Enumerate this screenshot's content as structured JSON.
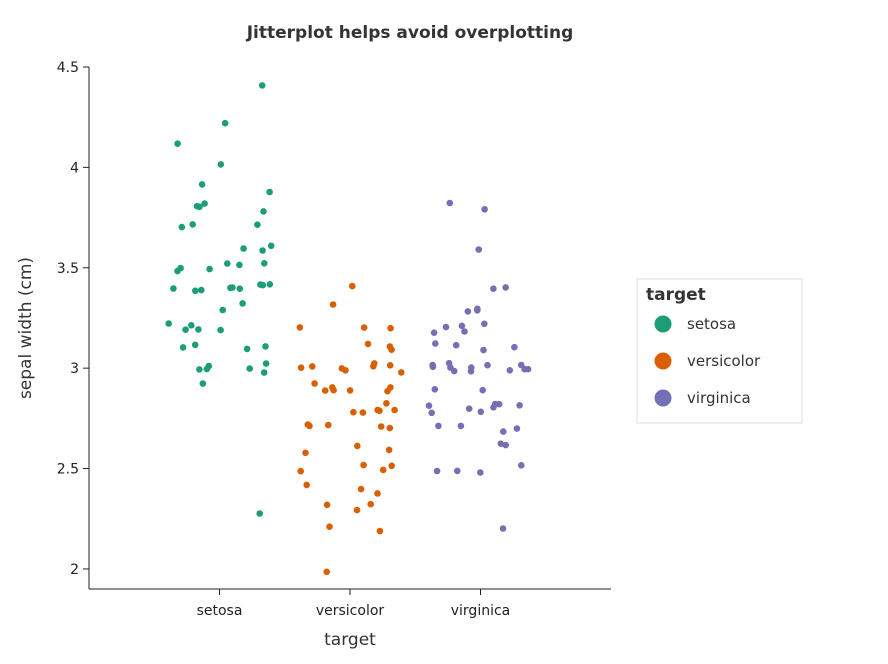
{
  "chart_data": {
    "type": "scatter",
    "title": "Jitterplot helps avoid overplotting",
    "xlabel": "target",
    "ylabel": "sepal width (cm)",
    "categories": [
      "setosa",
      "versicolor",
      "virginica"
    ],
    "yticks": [
      "2",
      "2.5",
      "3",
      "3.5",
      "4",
      "4.5"
    ],
    "ylim": [
      1.9,
      4.5
    ],
    "grid": false,
    "legend": {
      "title": "target",
      "placement": "right"
    },
    "colors": {
      "setosa": "#1b9e77",
      "versicolor": "#d95f02",
      "virginica": "#7570b3"
    },
    "series": [
      {
        "name": "setosa",
        "values": [
          3.5,
          3.0,
          3.2,
          3.1,
          3.6,
          3.9,
          3.4,
          3.4,
          2.9,
          3.1,
          3.7,
          3.4,
          3.0,
          3.0,
          4.0,
          4.4,
          3.9,
          3.5,
          3.8,
          3.8,
          3.4,
          3.7,
          3.6,
          3.3,
          3.4,
          3.0,
          3.4,
          3.5,
          3.4,
          3.2,
          3.1,
          3.4,
          4.1,
          4.2,
          3.1,
          3.2,
          3.5,
          3.6,
          3.0,
          3.4,
          3.5,
          2.3,
          3.2,
          3.5,
          3.8,
          3.0,
          3.8,
          3.2,
          3.7,
          3.3
        ]
      },
      {
        "name": "versicolor",
        "values": [
          3.2,
          3.2,
          3.1,
          2.3,
          2.8,
          2.8,
          3.3,
          2.4,
          2.9,
          2.7,
          2.0,
          3.0,
          2.2,
          2.9,
          2.9,
          3.1,
          3.0,
          2.7,
          2.2,
          2.5,
          3.2,
          2.8,
          2.5,
          2.8,
          2.9,
          3.0,
          2.8,
          3.0,
          2.9,
          2.6,
          2.4,
          2.4,
          2.7,
          2.7,
          3.0,
          3.4,
          3.1,
          2.3,
          3.0,
          2.5,
          2.6,
          3.0,
          2.6,
          2.3,
          2.7,
          3.0,
          2.9,
          2.9,
          2.5,
          2.8
        ]
      },
      {
        "name": "virginica",
        "values": [
          3.3,
          2.7,
          3.0,
          2.9,
          3.0,
          3.0,
          2.5,
          2.9,
          2.5,
          3.6,
          3.2,
          2.7,
          3.0,
          2.5,
          2.8,
          3.2,
          3.0,
          3.8,
          2.6,
          2.2,
          3.2,
          2.8,
          2.8,
          2.7,
          3.3,
          3.2,
          2.8,
          3.0,
          2.8,
          3.0,
          2.8,
          3.8,
          2.8,
          2.8,
          2.6,
          3.0,
          3.4,
          3.1,
          3.0,
          3.1,
          3.1,
          3.1,
          2.7,
          3.2,
          3.3,
          3.0,
          2.5,
          3.0,
          3.4,
          3.0
        ]
      }
    ]
  }
}
